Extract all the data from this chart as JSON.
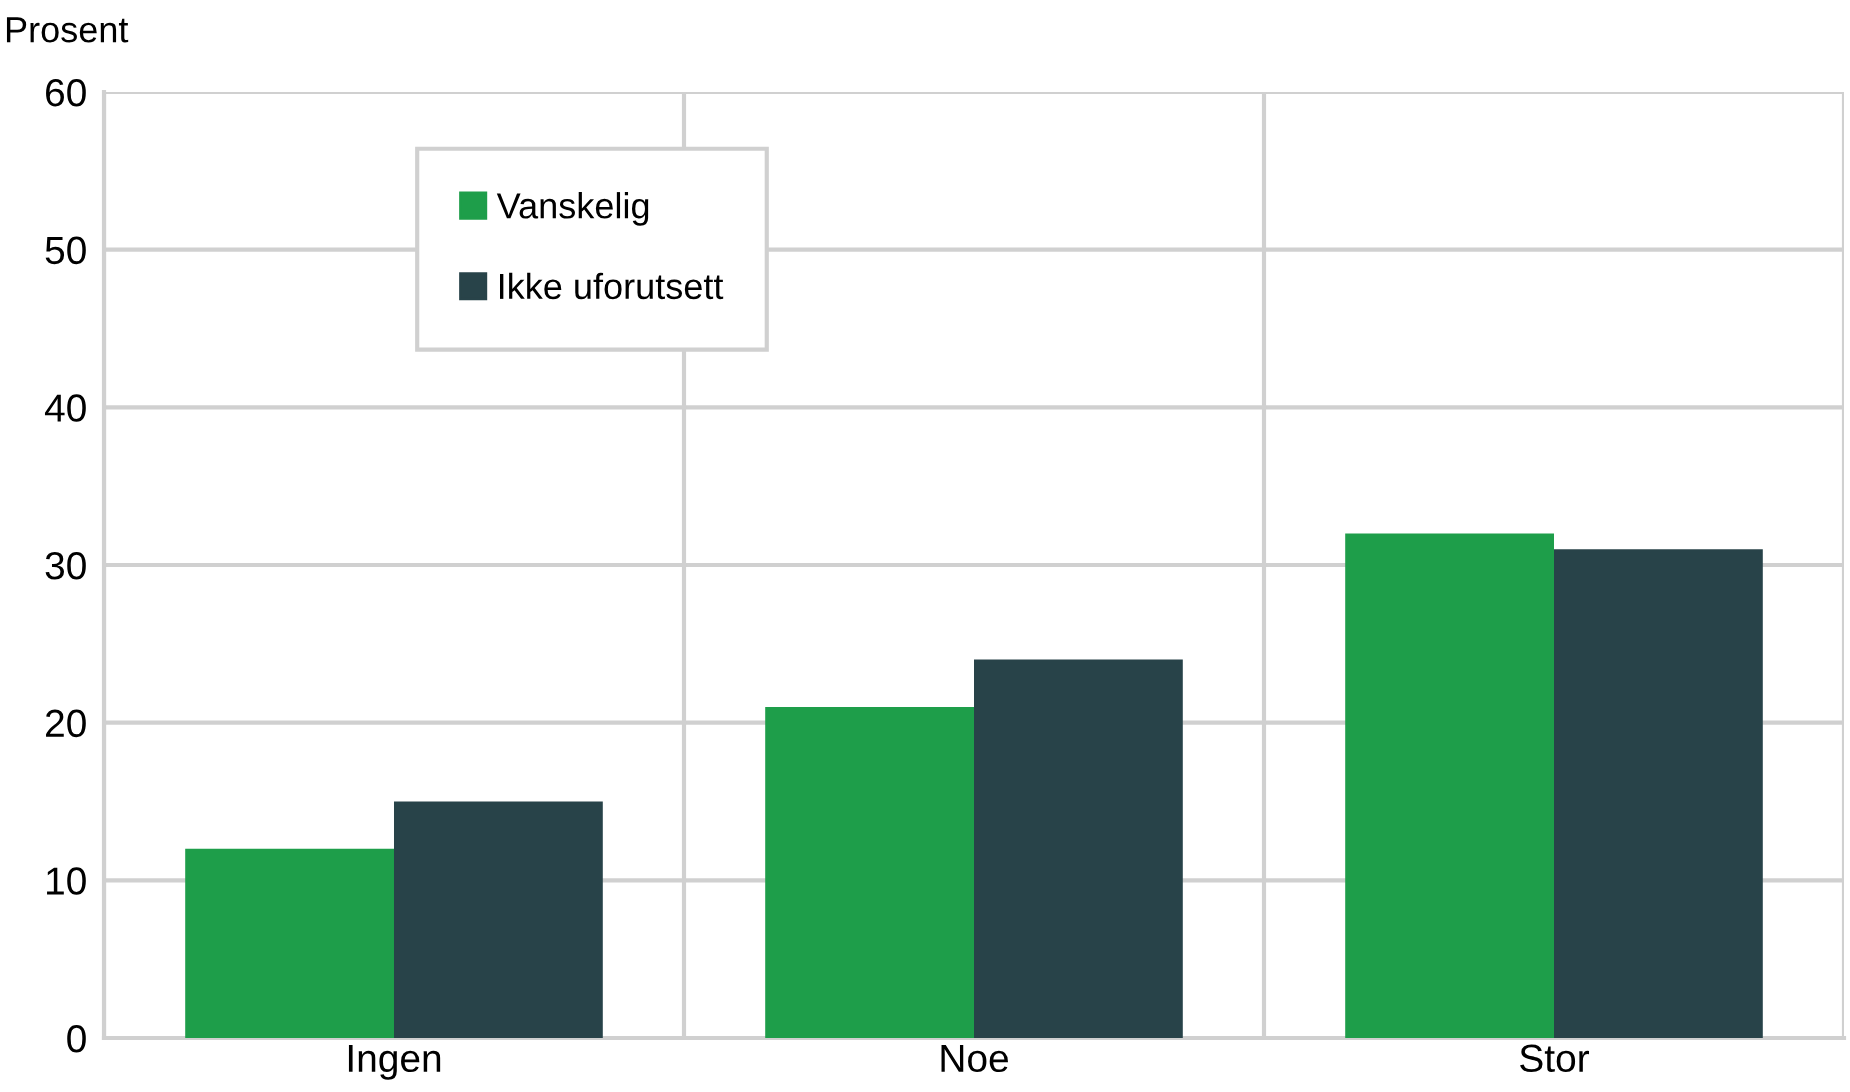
{
  "chart_data": {
    "type": "bar",
    "ylabel": "Prosent",
    "categories": [
      "Ingen",
      "Noe",
      "Stor"
    ],
    "series": [
      {
        "name": "Vanskelig",
        "color": "#1e9e4a",
        "values": [
          12,
          21,
          32
        ]
      },
      {
        "name": "Ikke uforutsett",
        "color": "#284349",
        "values": [
          15,
          24,
          31
        ]
      }
    ],
    "ylim": [
      0,
      60
    ],
    "yticks": [
      0,
      10,
      20,
      30,
      40,
      50,
      60
    ],
    "grid": true,
    "legend": "top left"
  }
}
